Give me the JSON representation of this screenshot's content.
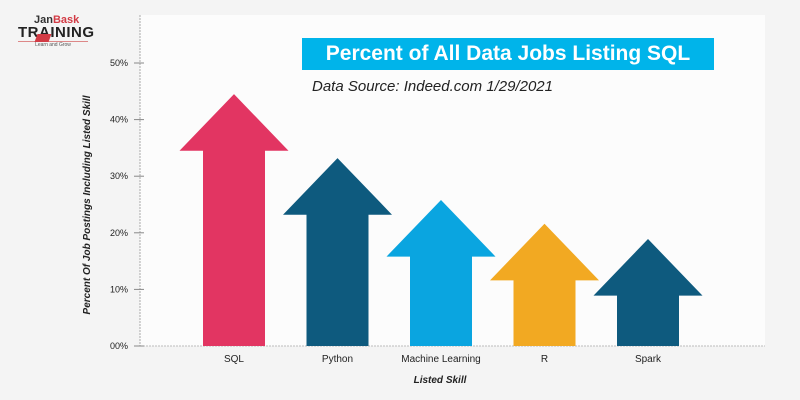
{
  "logo": {
    "brand_part1": "Jan",
    "brand_part2": "Bask",
    "brand_line2": "TRAINING",
    "tagline": "Learn and Grow"
  },
  "chart_data": {
    "type": "bar",
    "style": "upward arrows",
    "title": "Percent of All Data Jobs Listing SQL",
    "subtitle": "Data Source: Indeed.com 1/29/2021",
    "xlabel": "Listed Skill",
    "ylabel": "Percent Of Job Postings Including Listed Skill",
    "categories": [
      "SQL",
      "Python",
      "Machine Learning",
      "R",
      "Spark"
    ],
    "values": [
      44.5,
      33.2,
      25.8,
      21.6,
      18.9
    ],
    "colors": [
      "#e23562",
      "#0e5a7e",
      "#0aa5e0",
      "#f2a922",
      "#0e5a7e"
    ],
    "yticks": [
      "00%",
      "10%",
      "20%",
      "30%",
      "40%",
      "50%"
    ],
    "ylim": [
      0,
      50
    ],
    "grid": false
  }
}
